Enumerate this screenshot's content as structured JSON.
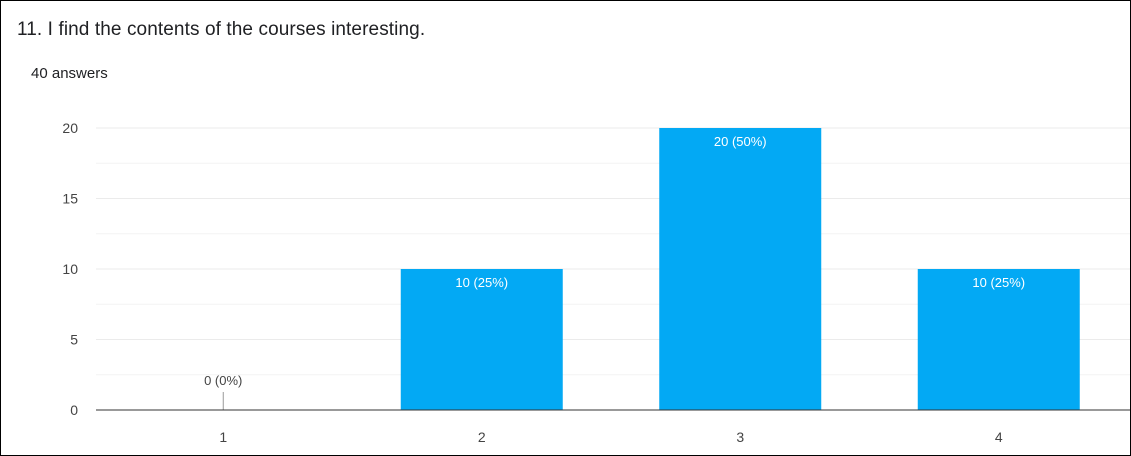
{
  "question": {
    "title": "11. I find the contents of the courses interesting.",
    "response_count": "40 answers"
  },
  "colors": {
    "bar": "#03A9F4",
    "grid": "#ebebeb",
    "grid_minor": "#f3f3f3",
    "axis": "#333333",
    "tick_text": "#444444",
    "label_inside": "#ffffff",
    "label_outside": "#444444"
  },
  "chart_data": {
    "type": "bar",
    "title": "",
    "xlabel": "",
    "ylabel": "",
    "categories": [
      "1",
      "2",
      "3",
      "4"
    ],
    "values": [
      0,
      10,
      20,
      10
    ],
    "data_labels": [
      "0 (0%)",
      "10 (25%)",
      "20 (50%)",
      "10 (25%)"
    ],
    "ylim": [
      0,
      20
    ],
    "y_ticks": [
      0,
      5,
      10,
      15,
      20
    ],
    "y_minor_ticks": [
      2.5,
      7.5,
      12.5,
      17.5
    ],
    "grid": true,
    "legend": "none"
  }
}
